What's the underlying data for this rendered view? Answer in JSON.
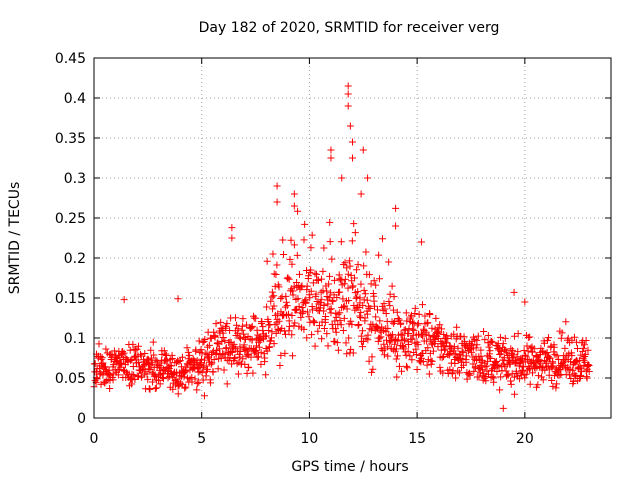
{
  "chart_data": {
    "type": "scatter",
    "title": "Day 182 of 2020, SRMTID for receiver verg",
    "xlabel": "GPS time / hours",
    "ylabel": "SRMTID / TECUs",
    "xlim": [
      0,
      24
    ],
    "ylim": [
      0,
      0.45
    ],
    "xticks": [
      0,
      5,
      10,
      15,
      20
    ],
    "yticks": [
      0,
      0.05,
      0.1,
      0.15,
      0.2,
      0.25,
      0.3,
      0.35,
      0.4,
      0.45
    ],
    "xtick_labels": [
      "0",
      "5",
      "10",
      "15",
      "20"
    ],
    "ytick_labels": [
      "0",
      "0.05",
      "0.1",
      "0.15",
      "0.2",
      "0.25",
      "0.3",
      "0.35",
      "0.4",
      "0.45"
    ],
    "grid": true,
    "marker": "+",
    "color": "#ff0000",
    "series_envelope": [
      {
        "x": 0,
        "baseline": 0.06
      },
      {
        "x": 2,
        "baseline": 0.065
      },
      {
        "x": 4,
        "baseline": 0.055
      },
      {
        "x": 5,
        "baseline": 0.07
      },
      {
        "x": 6,
        "baseline": 0.09
      },
      {
        "x": 7,
        "baseline": 0.09
      },
      {
        "x": 8,
        "baseline": 0.1
      },
      {
        "x": 9,
        "baseline": 0.13
      },
      {
        "x": 10,
        "baseline": 0.14
      },
      {
        "x": 11,
        "baseline": 0.13
      },
      {
        "x": 12,
        "baseline": 0.14
      },
      {
        "x": 13,
        "baseline": 0.12
      },
      {
        "x": 14,
        "baseline": 0.1
      },
      {
        "x": 15,
        "baseline": 0.1
      },
      {
        "x": 16,
        "baseline": 0.09
      },
      {
        "x": 17,
        "baseline": 0.08
      },
      {
        "x": 18,
        "baseline": 0.075
      },
      {
        "x": 19,
        "baseline": 0.07
      },
      {
        "x": 20,
        "baseline": 0.07
      },
      {
        "x": 22,
        "baseline": 0.075
      },
      {
        "x": 23,
        "baseline": 0.07
      }
    ],
    "notable_points": [
      {
        "x": 1.4,
        "y": 0.148
      },
      {
        "x": 3.9,
        "y": 0.149
      },
      {
        "x": 6.4,
        "y": 0.238
      },
      {
        "x": 6.4,
        "y": 0.225
      },
      {
        "x": 8.5,
        "y": 0.29
      },
      {
        "x": 8.5,
        "y": 0.27
      },
      {
        "x": 9.3,
        "y": 0.28
      },
      {
        "x": 9.3,
        "y": 0.265
      },
      {
        "x": 11.0,
        "y": 0.335
      },
      {
        "x": 11.0,
        "y": 0.325
      },
      {
        "x": 11.5,
        "y": 0.3
      },
      {
        "x": 11.8,
        "y": 0.415
      },
      {
        "x": 11.8,
        "y": 0.405
      },
      {
        "x": 11.8,
        "y": 0.39
      },
      {
        "x": 11.9,
        "y": 0.365
      },
      {
        "x": 12.0,
        "y": 0.345
      },
      {
        "x": 12.0,
        "y": 0.325
      },
      {
        "x": 12.4,
        "y": 0.28
      },
      {
        "x": 12.5,
        "y": 0.335
      },
      {
        "x": 12.7,
        "y": 0.3
      },
      {
        "x": 14.0,
        "y": 0.262
      },
      {
        "x": 14.0,
        "y": 0.24
      },
      {
        "x": 15.2,
        "y": 0.22
      },
      {
        "x": 19.0,
        "y": 0.012
      },
      {
        "x": 19.5,
        "y": 0.157
      },
      {
        "x": 20.0,
        "y": 0.145
      }
    ]
  }
}
